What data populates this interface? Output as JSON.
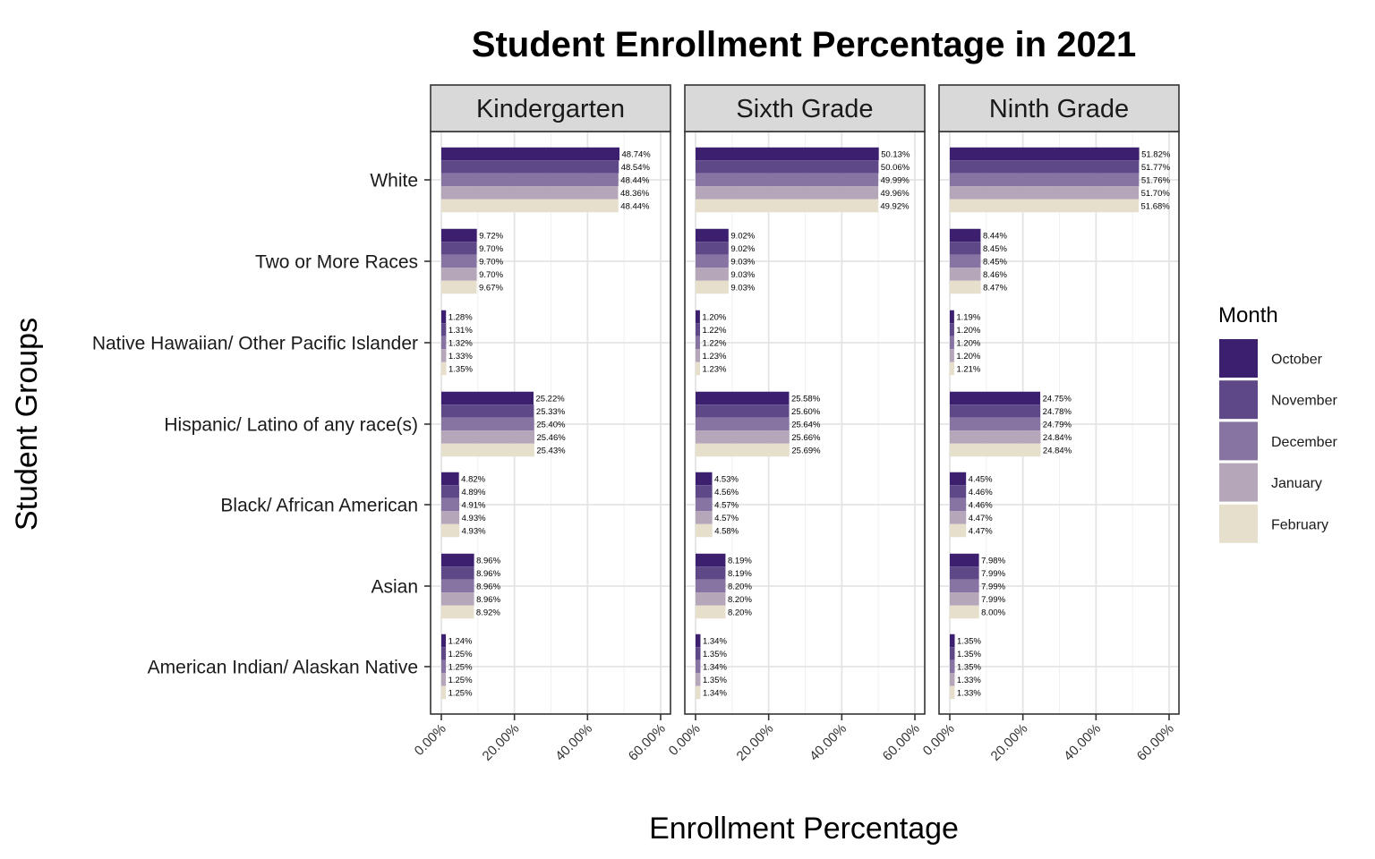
{
  "chart_data": {
    "type": "bar",
    "orientation": "horizontal",
    "title": "Student Enrollment Percentage in 2021",
    "xlabel": "Enrollment Percentage",
    "ylabel": "Student Groups",
    "xlim": [
      0,
      60
    ],
    "x_ticks": [
      "0.00%",
      "20.00%",
      "40.00%",
      "60.00%"
    ],
    "grid": true,
    "legend": {
      "title": "Month",
      "position": "right"
    },
    "categories": [
      "White",
      "Two or More Races",
      "Native Hawaiian/ Other Pacific Islander",
      "Hispanic/ Latino of any race(s)",
      "Black/ African American",
      "Asian",
      "American Indian/ Alaskan Native"
    ],
    "months": [
      "October",
      "November",
      "December",
      "January",
      "February"
    ],
    "colors": [
      "#3c1f6e",
      "#5e4888",
      "#8874a3",
      "#b5a6b9",
      "#e5dfcc"
    ],
    "panels": [
      {
        "name": "Kindergarten",
        "values": [
          [
            48.74,
            48.54,
            48.44,
            48.36,
            48.44
          ],
          [
            9.72,
            9.7,
            9.7,
            9.7,
            9.67
          ],
          [
            1.28,
            1.31,
            1.32,
            1.33,
            1.35
          ],
          [
            25.22,
            25.33,
            25.4,
            25.46,
            25.43
          ],
          [
            4.82,
            4.89,
            4.91,
            4.93,
            4.93
          ],
          [
            8.96,
            8.96,
            8.96,
            8.96,
            8.92
          ],
          [
            1.24,
            1.25,
            1.25,
            1.25,
            1.25
          ]
        ],
        "labels": [
          [
            "48.74%",
            "48.54%",
            "48.44%",
            "48.36%",
            "48.44%"
          ],
          [
            "9.72%",
            "9.70%",
            "9.70%",
            "9.70%",
            "9.67%"
          ],
          [
            "1.28%",
            "1.31%",
            "1.32%",
            "1.33%",
            "1.35%"
          ],
          [
            "25.22%",
            "25.33%",
            "25.40%",
            "25.46%",
            "25.43%"
          ],
          [
            "4.82%",
            "4.89%",
            "4.91%",
            "4.93%",
            "4.93%"
          ],
          [
            "8.96%",
            "8.96%",
            "8.96%",
            "8.96%",
            "8.92%"
          ],
          [
            "1.24%",
            "1.25%",
            "1.25%",
            "1.25%",
            "1.25%"
          ]
        ]
      },
      {
        "name": "Sixth Grade",
        "values": [
          [
            50.13,
            50.06,
            49.99,
            49.96,
            49.92
          ],
          [
            9.02,
            9.02,
            9.03,
            9.03,
            9.03
          ],
          [
            1.2,
            1.22,
            1.22,
            1.23,
            1.23
          ],
          [
            25.58,
            25.6,
            25.64,
            25.66,
            25.69
          ],
          [
            4.53,
            4.56,
            4.57,
            4.57,
            4.58
          ],
          [
            8.19,
            8.19,
            8.2,
            8.2,
            8.2
          ],
          [
            1.34,
            1.35,
            1.34,
            1.35,
            1.34
          ]
        ],
        "labels": [
          [
            "50.13%",
            "50.06%",
            "49.99%",
            "49.96%",
            "49.92%"
          ],
          [
            "9.02%",
            "9.02%",
            "9.03%",
            "9.03%",
            "9.03%"
          ],
          [
            "1.20%",
            "1.22%",
            "1.22%",
            "1.23%",
            "1.23%"
          ],
          [
            "25.58%",
            "25.60%",
            "25.64%",
            "25.66%",
            "25.69%"
          ],
          [
            "4.53%",
            "4.56%",
            "4.57%",
            "4.57%",
            "4.58%"
          ],
          [
            "8.19%",
            "8.19%",
            "8.20%",
            "8.20%",
            "8.20%"
          ],
          [
            "1.34%",
            "1.35%",
            "1.34%",
            "1.35%",
            "1.34%"
          ]
        ]
      },
      {
        "name": "Ninth Grade",
        "values": [
          [
            51.82,
            51.77,
            51.76,
            51.7,
            51.68
          ],
          [
            8.44,
            8.45,
            8.45,
            8.46,
            8.47
          ],
          [
            1.19,
            1.2,
            1.2,
            1.2,
            1.21
          ],
          [
            24.75,
            24.78,
            24.79,
            24.84,
            24.84
          ],
          [
            4.45,
            4.46,
            4.46,
            4.47,
            4.47
          ],
          [
            7.98,
            7.99,
            7.99,
            7.99,
            8.0
          ],
          [
            1.35,
            1.35,
            1.35,
            1.33,
            1.33
          ]
        ],
        "labels": [
          [
            "51.82%",
            "51.77%",
            "51.76%",
            "51.70%",
            "51.68%"
          ],
          [
            "8.44%",
            "8.45%",
            "8.45%",
            "8.46%",
            "8.47%"
          ],
          [
            "1.19%",
            "1.20%",
            "1.20%",
            "1.20%",
            "1.21%"
          ],
          [
            "24.75%",
            "24.78%",
            "24.79%",
            "24.84%",
            "24.84%"
          ],
          [
            "4.45%",
            "4.46%",
            "4.46%",
            "4.47%",
            "4.47%"
          ],
          [
            "7.98%",
            "7.99%",
            "7.99%",
            "7.99%",
            "8.00%"
          ],
          [
            "1.35%",
            "1.35%",
            "1.35%",
            "1.33%",
            "1.33%"
          ]
        ]
      }
    ]
  }
}
